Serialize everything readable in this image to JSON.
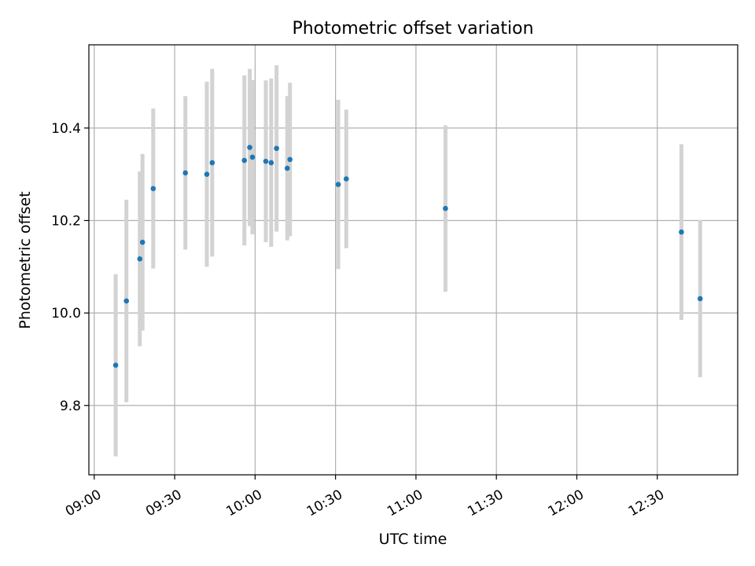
{
  "chart_data": {
    "type": "scatter",
    "title": "Photometric offset variation",
    "xlabel": "UTC time",
    "ylabel": "Photometric offset",
    "x_ticks": [
      "09:00",
      "09:30",
      "10:00",
      "10:30",
      "11:00",
      "11:30",
      "12:00",
      "12:30"
    ],
    "y_ticks": [
      "9.8",
      "10.0",
      "10.2",
      "10.4"
    ],
    "xlim": [
      "08:58",
      "13:00"
    ],
    "ylim": [
      9.65,
      10.58
    ],
    "grid": true,
    "colors": {
      "points": "#1f77b4",
      "errorbars": "#d3d3d3",
      "grid": "#b0b0b0"
    },
    "points": [
      {
        "time": "09:08",
        "y": 9.887,
        "err": 0.197
      },
      {
        "time": "09:12",
        "y": 10.026,
        "err": 0.219
      },
      {
        "time": "09:17",
        "y": 10.117,
        "err": 0.189
      },
      {
        "time": "09:18",
        "y": 10.153,
        "err": 0.191
      },
      {
        "time": "09:22",
        "y": 10.269,
        "err": 0.173
      },
      {
        "time": "09:34",
        "y": 10.303,
        "err": 0.166
      },
      {
        "time": "09:42",
        "y": 10.3,
        "err": 0.2
      },
      {
        "time": "09:44",
        "y": 10.325,
        "err": 0.203
      },
      {
        "time": "09:56",
        "y": 10.33,
        "err": 0.184
      },
      {
        "time": "09:58",
        "y": 10.358,
        "err": 0.17
      },
      {
        "time": "09:59",
        "y": 10.337,
        "err": 0.167
      },
      {
        "time": "10:04",
        "y": 10.328,
        "err": 0.175
      },
      {
        "time": "10:06",
        "y": 10.325,
        "err": 0.182
      },
      {
        "time": "10:08",
        "y": 10.356,
        "err": 0.18
      },
      {
        "time": "10:12",
        "y": 10.313,
        "err": 0.156
      },
      {
        "time": "10:13",
        "y": 10.332,
        "err": 0.166
      },
      {
        "time": "10:31",
        "y": 10.278,
        "err": 0.183
      },
      {
        "time": "10:34",
        "y": 10.29,
        "err": 0.15
      },
      {
        "time": "11:11",
        "y": 10.226,
        "err": 0.18
      },
      {
        "time": "12:39",
        "y": 10.175,
        "err": 0.19
      },
      {
        "time": "12:46",
        "y": 10.031,
        "err": 0.17
      }
    ]
  }
}
